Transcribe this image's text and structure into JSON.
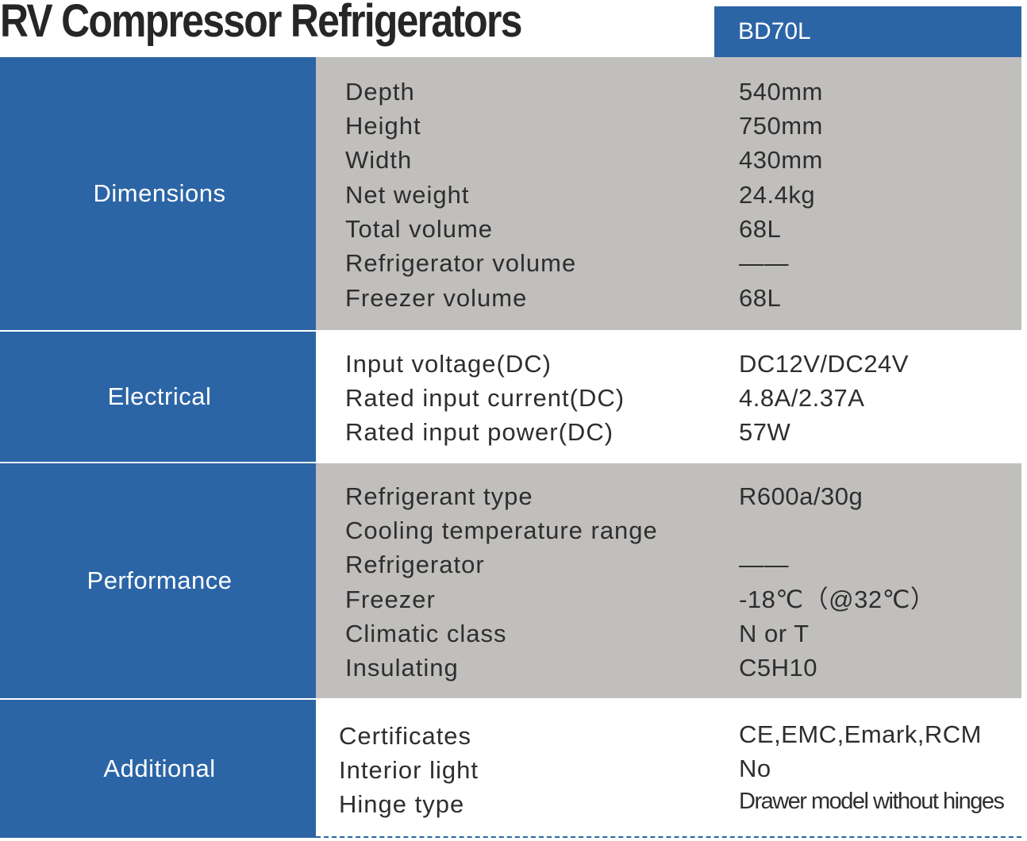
{
  "title": "RV Compressor Refrigerators",
  "model": "BD70L",
  "sections": [
    {
      "category": "Dimensions",
      "rows": [
        {
          "label": "Depth",
          "value": "540mm"
        },
        {
          "label": "Height",
          "value": "750mm"
        },
        {
          "label": "Width",
          "value": "430mm"
        },
        {
          "label": "Net weight",
          "value": "24.4kg"
        },
        {
          "label": "Total volume",
          "value": "68L"
        },
        {
          "label": "Refrigerator volume",
          "value": "——"
        },
        {
          "label": "Freezer volume",
          "value": "68L"
        }
      ]
    },
    {
      "category": "Electrical",
      "rows": [
        {
          "label": "Input voltage(DC)",
          "value": "DC12V/DC24V"
        },
        {
          "label": "Rated input current(DC)",
          "value": "4.8A/2.37A"
        },
        {
          "label": "Rated input power(DC)",
          "value": "57W"
        }
      ]
    },
    {
      "category": "Performance",
      "rows": [
        {
          "label": "Refrigerant type",
          "value": "R600a/30g"
        },
        {
          "label": "Cooling temperature range",
          "value": ""
        },
        {
          "label": "Refrigerator",
          "value": "——"
        },
        {
          "label": "Freezer",
          "value": "-18℃（@32℃）"
        },
        {
          "label": "Climatic class",
          "value": "N or T"
        },
        {
          "label": "Insulating",
          "value": "C5H10"
        }
      ]
    },
    {
      "category": "Additional",
      "rows": [
        {
          "label": "Certificates",
          "value": "CE,EMC,Emark,RCM"
        },
        {
          "label": "Interior light",
          "value": "No"
        },
        {
          "label": "Hinge type",
          "value": "Drawer model without hinges"
        }
      ]
    }
  ],
  "colors": {
    "accent": "#2c65a6",
    "gray": "#c0bfbd",
    "text": "#2e2e2e"
  }
}
